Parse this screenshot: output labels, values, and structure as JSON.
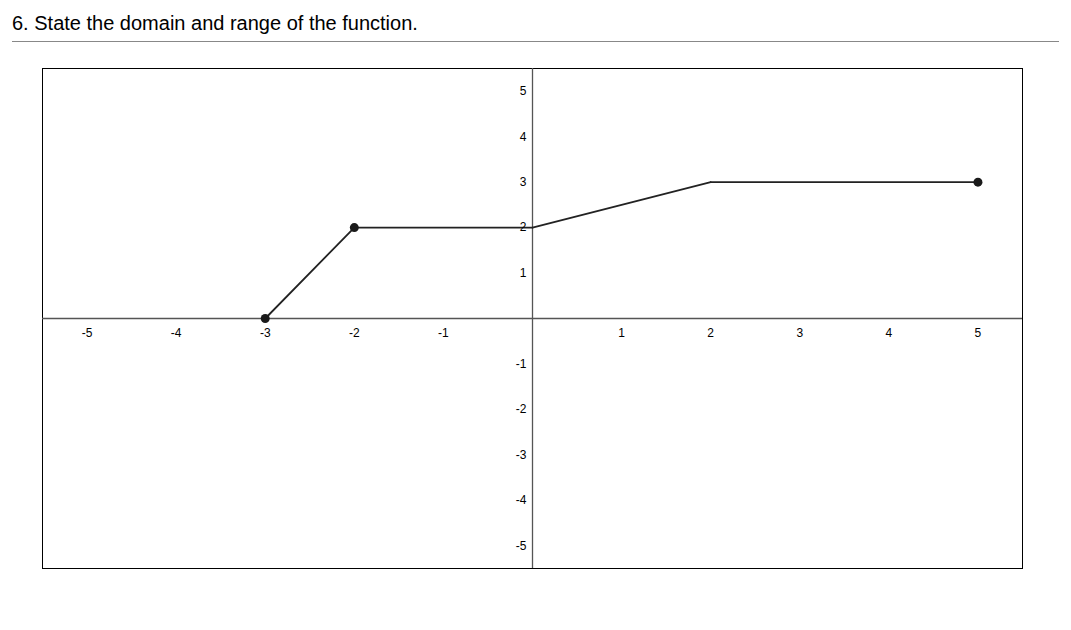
{
  "chart_data": {
    "type": "line",
    "title": "6. State the domain and range of the function.",
    "series": [
      {
        "type": "line",
        "color": "#222222",
        "segments": [
          {
            "x": [
              -3,
              -2
            ],
            "y": [
              0,
              2
            ]
          },
          {
            "x": [
              -2,
              0
            ],
            "y": [
              2,
              2
            ]
          },
          {
            "x": [
              0,
              2
            ],
            "y": [
              2,
              3
            ]
          },
          {
            "x": [
              2,
              5
            ],
            "y": [
              3,
              3
            ]
          }
        ]
      },
      {
        "type": "scatter",
        "color": "#1a1a1a",
        "marker": "circle",
        "x": [
          -3,
          -2,
          5
        ],
        "y": [
          0,
          2,
          3
        ]
      }
    ],
    "xlim": [
      -5.5,
      5.5
    ],
    "ylim": [
      -5.5,
      5.5
    ],
    "xticks": [
      -5,
      -4,
      -3,
      -2,
      -1,
      1,
      2,
      3,
      4,
      5
    ],
    "yticks": [
      -5,
      -4,
      -3,
      -2,
      -1,
      1,
      2,
      3,
      4,
      5
    ],
    "grid": false
  }
}
